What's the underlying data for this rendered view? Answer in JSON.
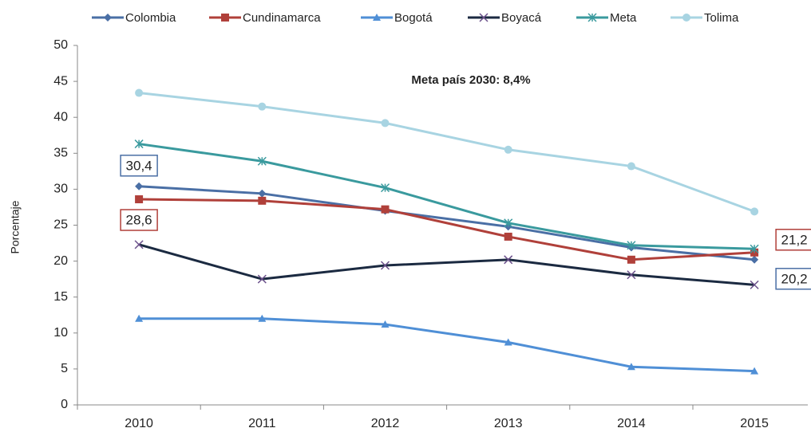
{
  "chart_data": {
    "type": "line",
    "annotation": "Meta país 2030: 8,4%",
    "y_label": "Porcentaje",
    "categories": [
      "2010",
      "2011",
      "2012",
      "2013",
      "2014",
      "2015"
    ],
    "ylim": [
      0,
      50
    ],
    "yticks": [
      0,
      5,
      10,
      15,
      20,
      25,
      30,
      35,
      40,
      45,
      50
    ],
    "legend": "top",
    "series": [
      {
        "name": "Colombia",
        "color": "#4a6fa5",
        "marker": "diamond",
        "values": [
          30.4,
          29.4,
          27.0,
          24.8,
          21.9,
          20.2
        ],
        "value_labels": [
          "30,4",
          null,
          null,
          null,
          null,
          "20,2"
        ]
      },
      {
        "name": "Cundinamarca",
        "color": "#b0403a",
        "marker": "square",
        "values": [
          28.6,
          28.4,
          27.2,
          23.4,
          20.2,
          21.2
        ],
        "value_labels": [
          "28,6",
          null,
          null,
          null,
          null,
          "21,2"
        ]
      },
      {
        "name": "Bogotá",
        "color": "#4f8fd6",
        "marker": "triangle",
        "values": [
          12.0,
          12.0,
          11.2,
          8.7,
          5.3,
          4.7
        ]
      },
      {
        "name": "Boyacá",
        "color": "#1b2a41",
        "marker": "x",
        "values": [
          22.3,
          17.5,
          19.4,
          20.2,
          18.1,
          16.7
        ]
      },
      {
        "name": "Meta",
        "color": "#3a9a9e",
        "marker": "asterisk",
        "values": [
          36.3,
          33.9,
          30.2,
          25.3,
          22.2,
          21.7
        ]
      },
      {
        "name": "Tolima",
        "color": "#a8d4e2",
        "marker": "circle",
        "values": [
          43.4,
          41.5,
          39.2,
          35.5,
          33.2,
          26.9
        ]
      }
    ]
  }
}
